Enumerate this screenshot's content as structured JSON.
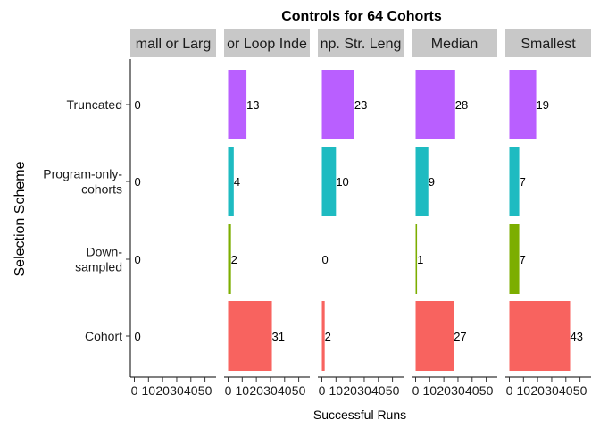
{
  "chart_data": {
    "type": "bar",
    "orientation": "horizontal",
    "title": "Controls for 64 Cohorts",
    "xlabel": "Successful Runs",
    "ylabel": "Selection Scheme",
    "xlim": [
      0,
      55
    ],
    "xticks": [
      "0",
      "10",
      "20",
      "30",
      "40",
      "50"
    ],
    "legend": "none",
    "grid": false,
    "categories": [
      "Truncated",
      "Program-only-cohorts",
      "Down-sampled",
      "Cohort"
    ],
    "category_labels": [
      [
        "Truncated"
      ],
      [
        "Program-only-",
        "cohorts"
      ],
      [
        "Down-",
        "sampled"
      ],
      [
        "Cohort"
      ]
    ],
    "colors": {
      "Truncated": "#B95FFF",
      "Program-only-cohorts": "#1EBBC1",
      "Down-sampled": "#7CAE00",
      "Cohort": "#F8635F",
      "strip": "#C8C8C8"
    },
    "facets": [
      {
        "label": "mall or Larg",
        "values": [
          0,
          0,
          0,
          0
        ]
      },
      {
        "label": "or Loop Inde",
        "values": [
          13,
          4,
          2,
          31
        ]
      },
      {
        "label": "np. Str. Leng",
        "values": [
          23,
          10,
          0,
          2
        ]
      },
      {
        "label": "Median",
        "values": [
          28,
          9,
          1,
          27
        ]
      },
      {
        "label": "Smallest",
        "values": [
          19,
          7,
          7,
          43
        ]
      }
    ]
  }
}
